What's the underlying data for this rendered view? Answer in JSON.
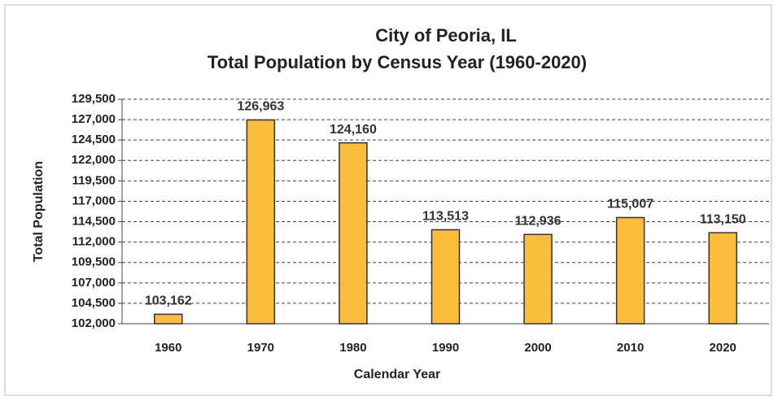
{
  "chart_data": {
    "type": "bar",
    "title": "City of Peoria, IL",
    "subtitle": "Total Population by Census Year (1960-2020)",
    "x_label": "Calendar Year",
    "y_label": "Total Population",
    "categories": [
      "1960",
      "1970",
      "1980",
      "1990",
      "2000",
      "2010",
      "2020"
    ],
    "values": [
      103162,
      126963,
      124160,
      113513,
      112936,
      115007,
      113150
    ],
    "value_labels": [
      "103,162",
      "126,963",
      "124,160",
      "113,513",
      "112,936",
      "115,007",
      "113,150"
    ],
    "color": "#fbbd3c",
    "ylim": [
      102000,
      129500
    ],
    "yticks": [
      {
        "value": 102000,
        "label": "102,000"
      },
      {
        "value": 104500,
        "label": "104,500"
      },
      {
        "value": 107000,
        "label": "107,000"
      },
      {
        "value": 109500,
        "label": "109,500"
      },
      {
        "value": 112000,
        "label": "112,000"
      },
      {
        "value": 114500,
        "label": "114,500"
      },
      {
        "value": 117000,
        "label": "117,000"
      },
      {
        "value": 119500,
        "label": "119,500"
      },
      {
        "value": 122000,
        "label": "122,000"
      },
      {
        "value": 124500,
        "label": "124,500"
      },
      {
        "value": 127000,
        "label": "127,000"
      },
      {
        "value": 129500,
        "label": "129,500"
      }
    ],
    "grid": true
  }
}
